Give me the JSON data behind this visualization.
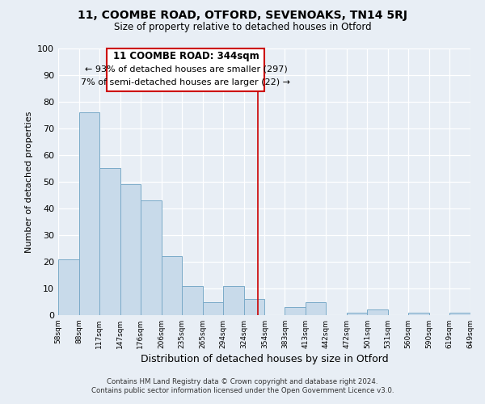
{
  "title_line1": "11, COOMBE ROAD, OTFORD, SEVENOAKS, TN14 5RJ",
  "title_line2": "Size of property relative to detached houses in Otford",
  "xlabel": "Distribution of detached houses by size in Otford",
  "ylabel": "Number of detached properties",
  "bar_edges": [
    58,
    88,
    117,
    147,
    176,
    206,
    235,
    265,
    294,
    324,
    354,
    383,
    413,
    442,
    472,
    501,
    531,
    560,
    590,
    619,
    649
  ],
  "bar_heights": [
    21,
    76,
    55,
    49,
    43,
    22,
    11,
    5,
    11,
    6,
    0,
    3,
    5,
    0,
    1,
    2,
    0,
    1,
    0,
    1
  ],
  "tick_labels": [
    "58sqm",
    "88sqm",
    "117sqm",
    "147sqm",
    "176sqm",
    "206sqm",
    "235sqm",
    "265sqm",
    "294sqm",
    "324sqm",
    "354sqm",
    "383sqm",
    "413sqm",
    "442sqm",
    "472sqm",
    "501sqm",
    "531sqm",
    "560sqm",
    "590sqm",
    "619sqm",
    "649sqm"
  ],
  "bar_color": "#c8daea",
  "bar_edge_color": "#7aaac8",
  "vline_x": 344,
  "vline_color": "#cc0000",
  "annotation_title": "11 COOMBE ROAD: 344sqm",
  "annotation_line1": "← 93% of detached houses are smaller (297)",
  "annotation_line2": "7% of semi-detached houses are larger (22) →",
  "box_rect_color": "#cc0000",
  "ylim": [
    0,
    100
  ],
  "yticks": [
    0,
    10,
    20,
    30,
    40,
    50,
    60,
    70,
    80,
    90,
    100
  ],
  "footer_line1": "Contains HM Land Registry data © Crown copyright and database right 2024.",
  "footer_line2": "Contains public sector information licensed under the Open Government Licence v3.0.",
  "bg_color": "#e8eef5"
}
